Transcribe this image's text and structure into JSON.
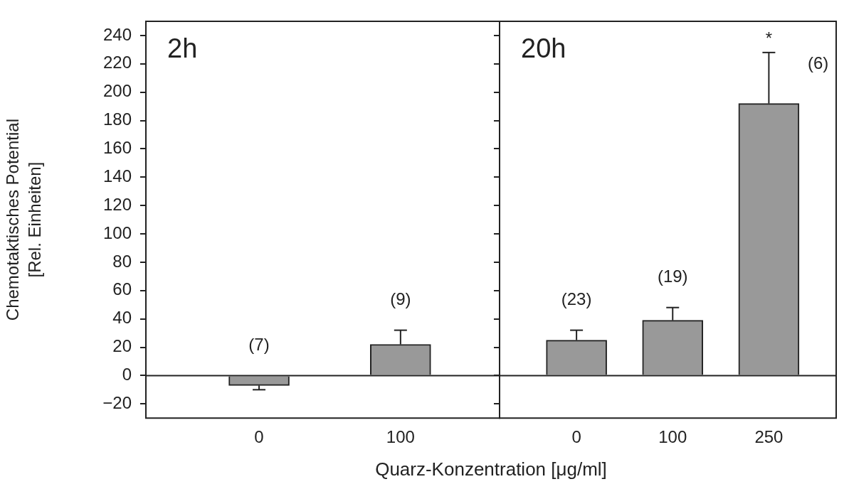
{
  "chart_data": [
    {
      "type": "bar",
      "title": "2h",
      "xlabel": "Quarz-Konzentration [μg/ml]",
      "ylabel": "Chemotaktisches Potential\n[Rel. Einheiten]",
      "categories": [
        "0",
        "100"
      ],
      "values": [
        -7,
        22
      ],
      "errors": [
        [
          -10,
          -7
        ],
        [
          22,
          32
        ]
      ],
      "color": "#999999",
      "ylim": [
        -30,
        250
      ],
      "yticks": [
        -20,
        0,
        20,
        40,
        60,
        80,
        100,
        120,
        140,
        160,
        180,
        200,
        220,
        240
      ],
      "grid": false,
      "ref_lines": [
        {
          "axis": "y",
          "value": 0
        }
      ],
      "annotations": [
        "(7)",
        "(9)"
      ]
    },
    {
      "type": "bar",
      "title": "20h",
      "categories": [
        "0",
        "100",
        "250"
      ],
      "values": [
        25,
        39,
        192
      ],
      "errors": [
        [
          25,
          32
        ],
        [
          39,
          48
        ],
        [
          192,
          228
        ]
      ],
      "color": "#999999",
      "ylim": [
        -30,
        250
      ],
      "yticks": [
        -20,
        0,
        20,
        40,
        60,
        80,
        100,
        120,
        140,
        160,
        180,
        200,
        220,
        240
      ],
      "grid": false,
      "tick_labels": "x",
      "ref_lines": [
        {
          "axis": "y",
          "value": 0
        }
      ],
      "annotations": [
        "(23)",
        "(19)",
        "(6)",
        {
          "text": "*",
          "x": "250",
          "y": 228
        }
      ]
    }
  ]
}
